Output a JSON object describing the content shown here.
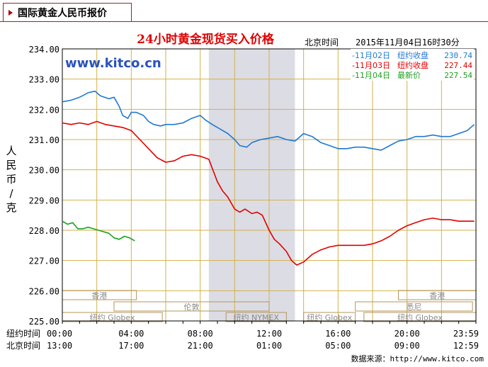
{
  "header": {
    "tab_title": "国际黄金人民币报价"
  },
  "chart_data": {
    "type": "line",
    "title": "24小时黄金现货买入价格",
    "watermark": "www.kitco.cn",
    "timestamp_label": "北京时间",
    "timestamp": "2015年11月04日16时30分",
    "ylabel_chars": [
      "人",
      "民",
      "币",
      "/",
      "克"
    ],
    "ylim": [
      225.0,
      234.0
    ],
    "ytick_labels": [
      "225.00",
      "226.00",
      "227.00",
      "228.00",
      "229.00",
      "230.00",
      "231.00",
      "232.00",
      "233.00",
      "234.00"
    ],
    "x_axis_rows": [
      {
        "label": "纽约时间",
        "ticks": [
          "00:00",
          "04:00",
          "08:00",
          "12:00",
          "16:00",
          "20:00",
          "23:59"
        ]
      },
      {
        "label": "北京时间",
        "ticks": [
          "13:00",
          "17:00",
          "21:00",
          "01:00",
          "05:00",
          "09:00",
          "12:59"
        ]
      }
    ],
    "colors": {
      "grid": "#d2b24c",
      "frame": "#000000",
      "title": "#e00000",
      "watermark": "#2a52be",
      "shade": "#dcdce4",
      "market": "#b4965a"
    },
    "legend": {
      "placement": "top-right"
    },
    "shaded_range_hours": [
      8.5,
      13.5
    ],
    "market_bands": [
      {
        "name": "香港",
        "row": 0,
        "ranges": [
          [
            0,
            4.3
          ],
          [
            19.5,
            24
          ]
        ]
      },
      {
        "name": "伦敦",
        "row": 1,
        "ranges": [
          [
            3.0,
            12.0
          ]
        ]
      },
      {
        "name": "悉尼",
        "row": 1,
        "ranges": [
          [
            17.0,
            23.8
          ]
        ]
      },
      {
        "name": "纽约 Globex",
        "row": 2,
        "ranges": [
          [
            0,
            5.8
          ],
          [
            17.5,
            24
          ]
        ]
      },
      {
        "name": "纽约 NYMEX",
        "row": 2,
        "ranges": [
          [
            9.5,
            13.0
          ]
        ]
      },
      {
        "name": "纽约 Globex",
        "row": 2,
        "ranges": [
          [
            14.0,
            17.0
          ]
        ]
      }
    ],
    "series": [
      {
        "name": "11月02日",
        "legend_note": "纽约收盘",
        "legend_value": "230.74",
        "color": "#1f78d2",
        "x": [
          0,
          0.5,
          1,
          1.5,
          1.9,
          2.2,
          2.7,
          3.0,
          3.3,
          3.5,
          3.8,
          4.0,
          4.3,
          4.7,
          5.0,
          5.3,
          5.7,
          6.0,
          6.5,
          7.0,
          7.5,
          8.0,
          8.3,
          8.7,
          9.0,
          9.3,
          9.6,
          10.0,
          10.3,
          10.7,
          11.0,
          11.5,
          12.0,
          12.5,
          13.0,
          13.5,
          14.0,
          14.5,
          15.0,
          15.5,
          16.0,
          16.5,
          17.0,
          17.5,
          18.0,
          18.5,
          19.0,
          19.5,
          20.0,
          20.5,
          21.0,
          21.5,
          22.0,
          22.5,
          23.0,
          23.5,
          23.9
        ],
        "y": [
          232.25,
          232.3,
          232.4,
          232.55,
          232.6,
          232.45,
          232.35,
          232.4,
          232.1,
          231.8,
          231.7,
          231.9,
          231.9,
          231.8,
          231.6,
          231.5,
          231.45,
          231.5,
          231.5,
          231.55,
          231.7,
          231.8,
          231.65,
          231.5,
          231.4,
          231.3,
          231.2,
          231.0,
          230.8,
          230.75,
          230.9,
          231.0,
          231.05,
          231.1,
          231.0,
          230.95,
          231.2,
          231.1,
          230.9,
          230.8,
          230.7,
          230.7,
          230.75,
          230.75,
          230.7,
          230.65,
          230.8,
          230.95,
          231.0,
          231.1,
          231.1,
          231.15,
          231.1,
          231.1,
          231.2,
          231.3,
          231.5
        ]
      },
      {
        "name": "11月03日",
        "legend_note": "纽约收盘",
        "legend_value": "227.44",
        "color": "#e00000",
        "x": [
          0,
          0.5,
          1,
          1.5,
          2.0,
          2.5,
          3.0,
          3.5,
          4.0,
          4.5,
          5.0,
          5.5,
          6.0,
          6.5,
          7.0,
          7.5,
          8.0,
          8.5,
          8.8,
          9.0,
          9.3,
          9.6,
          10.0,
          10.3,
          10.6,
          11.0,
          11.3,
          11.6,
          12.0,
          12.3,
          12.6,
          13.0,
          13.3,
          13.6,
          14.0,
          14.5,
          15.0,
          15.5,
          16.0,
          16.5,
          17.0,
          17.5,
          18.0,
          18.5,
          19.0,
          19.5,
          20.0,
          20.5,
          21.0,
          21.5,
          22.0,
          22.5,
          23.0,
          23.5,
          23.9
        ],
        "y": [
          231.55,
          231.5,
          231.55,
          231.5,
          231.6,
          231.5,
          231.45,
          231.4,
          231.3,
          231.0,
          230.7,
          230.4,
          230.25,
          230.3,
          230.45,
          230.5,
          230.45,
          230.35,
          229.9,
          229.6,
          229.3,
          229.1,
          228.7,
          228.6,
          228.7,
          228.55,
          228.6,
          228.5,
          228.0,
          227.7,
          227.55,
          227.3,
          227.0,
          226.85,
          226.95,
          227.2,
          227.35,
          227.45,
          227.5,
          227.5,
          227.5,
          227.5,
          227.55,
          227.65,
          227.8,
          228.0,
          228.15,
          228.25,
          228.35,
          228.4,
          228.35,
          228.35,
          228.3,
          228.3,
          228.3
        ]
      },
      {
        "name": "11月04日",
        "legend_note": "最新价",
        "legend_value": "227.54",
        "color": "#1ea01e",
        "x": [
          0,
          0.3,
          0.6,
          0.9,
          1.2,
          1.5,
          1.8,
          2.1,
          2.4,
          2.7,
          3.0,
          3.3,
          3.6,
          3.9,
          4.2
        ],
        "y": [
          228.3,
          228.2,
          228.25,
          228.05,
          228.05,
          228.1,
          228.05,
          228.0,
          227.95,
          227.9,
          227.75,
          227.7,
          227.8,
          227.75,
          227.65
        ]
      }
    ],
    "source_label": "数据来源：http://www.kitco.com"
  }
}
